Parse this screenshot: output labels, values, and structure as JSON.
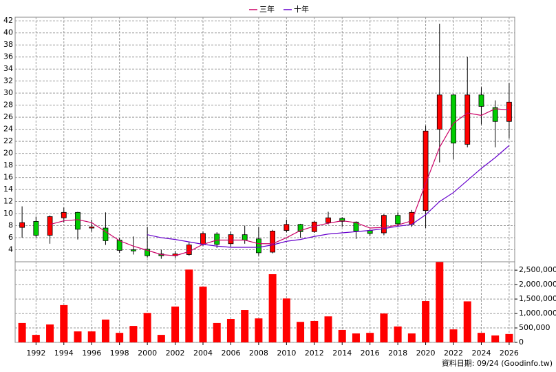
{
  "chart_data": {
    "type": "candlestick",
    "legend": [
      "三年",
      "十年"
    ],
    "x": [
      1991,
      1992,
      1993,
      1994,
      1995,
      1996,
      1997,
      1998,
      1999,
      2000,
      2001,
      2002,
      2003,
      2004,
      2005,
      2006,
      2007,
      2008,
      2009,
      2010,
      2011,
      2012,
      2013,
      2014,
      2015,
      2016,
      2017,
      2018,
      2019,
      2020,
      2021,
      2022,
      2023,
      2024,
      2025,
      2026
    ],
    "open": [
      7.7,
      8.7,
      6.4,
      9.3,
      10.2,
      7.6,
      7.6,
      5.6,
      4.0,
      4.1,
      3.3,
      3.0,
      3.2,
      4.9,
      6.6,
      5.0,
      6.5,
      5.8,
      3.6,
      7.2,
      8.2,
      7.0,
      8.5,
      9.2,
      8.6,
      7.2,
      6.8,
      9.7,
      8.2,
      10.5,
      24.0,
      29.7,
      21.5,
      29.7,
      27.6,
      25.3
    ],
    "high": [
      11.2,
      9.5,
      9.7,
      11.0,
      10.3,
      9.0,
      10.2,
      6.0,
      6.2,
      7.8,
      4.0,
      3.8,
      5.3,
      7.0,
      6.9,
      7.0,
      8.0,
      7.8,
      7.3,
      9.0,
      8.3,
      8.8,
      10.3,
      9.4,
      8.7,
      7.4,
      9.9,
      10.2,
      10.6,
      24.6,
      41.5,
      29.8,
      36.0,
      31.0,
      28.8,
      31.7
    ],
    "low": [
      6.0,
      6.0,
      5.0,
      8.5,
      5.7,
      7.0,
      4.8,
      3.5,
      3.2,
      2.7,
      2.5,
      2.6,
      3.0,
      4.6,
      4.3,
      4.5,
      5.0,
      3.0,
      3.4,
      6.9,
      6.0,
      6.8,
      8.2,
      7.8,
      5.8,
      6.3,
      6.4,
      7.9,
      7.8,
      7.6,
      18.5,
      19.0,
      21.0,
      24.8,
      21.0,
      22.5
    ],
    "close": [
      8.5,
      6.4,
      9.5,
      10.2,
      7.4,
      7.8,
      5.5,
      3.9,
      3.8,
      3.0,
      3.0,
      3.3,
      4.8,
      6.7,
      4.9,
      6.5,
      5.6,
      3.5,
      7.1,
      8.2,
      7.0,
      8.6,
      9.3,
      8.7,
      7.1,
      6.7,
      9.7,
      8.3,
      10.2,
      23.7,
      29.7,
      21.7,
      29.7,
      27.8,
      25.3,
      28.5
    ],
    "up_color": "#ff0000",
    "down_color": "#00cc00",
    "series": [
      {
        "name": "三年",
        "color": "#cc0066",
        "values": [
          null,
          null,
          8.2,
          8.8,
          9.0,
          8.5,
          7.0,
          5.5,
          4.6,
          3.9,
          3.2,
          3.0,
          3.7,
          4.9,
          5.6,
          5.6,
          5.6,
          5.0,
          5.0,
          6.0,
          7.2,
          7.9,
          8.4,
          8.8,
          8.5,
          7.6,
          7.7,
          8.1,
          8.8,
          15.0,
          21.0,
          25.0,
          26.7,
          26.3,
          27.4,
          27.2
        ]
      },
      {
        "name": "十年",
        "color": "#6600cc",
        "values": [
          null,
          null,
          null,
          null,
          null,
          null,
          null,
          null,
          null,
          6.5,
          6.0,
          5.7,
          5.3,
          4.9,
          4.6,
          4.4,
          4.4,
          4.4,
          4.8,
          5.4,
          5.7,
          6.2,
          6.6,
          6.8,
          7.0,
          7.2,
          7.5,
          7.9,
          8.2,
          9.8,
          12.0,
          13.5,
          15.5,
          17.5,
          19.3,
          21.3
        ]
      }
    ],
    "volume": {
      "color": "#ff0000",
      "values": [
        670000,
        260000,
        620000,
        1290000,
        380000,
        380000,
        790000,
        330000,
        570000,
        1020000,
        260000,
        1240000,
        2520000,
        1930000,
        670000,
        810000,
        1120000,
        830000,
        2360000,
        1520000,
        710000,
        740000,
        900000,
        430000,
        310000,
        330000,
        1000000,
        550000,
        310000,
        1430000,
        2780000,
        450000,
        1420000,
        330000,
        240000,
        290000
      ],
      "ylim": [
        0,
        2790000
      ],
      "yticks": [
        0,
        {
          "value": 500000,
          "label": "500,000"
        },
        {
          "value": 1000000,
          "label": "1,000,000"
        },
        {
          "value": 1500000,
          "label": "1,500,000"
        },
        {
          "value": 2000000,
          "label": "2,000,000"
        },
        {
          "value": 2500000,
          "label": "2,500,000"
        }
      ]
    },
    "xlim": [
      1990.5,
      2026.4
    ],
    "xticks": [
      1992,
      1994,
      1996,
      1998,
      2000,
      2002,
      2004,
      2006,
      2008,
      2010,
      2012,
      2014,
      2016,
      2018,
      2020,
      2022,
      2024,
      2026
    ],
    "ylim": [
      2.0,
      42.6
    ],
    "yticks": [
      4,
      6,
      8,
      10,
      12,
      14,
      16,
      18,
      20,
      22,
      24,
      26,
      28,
      30,
      32,
      34,
      36,
      38,
      40,
      42
    ],
    "grid": true,
    "footnote": "資料日期: 09/24  (Goodinfo.tw)"
  }
}
